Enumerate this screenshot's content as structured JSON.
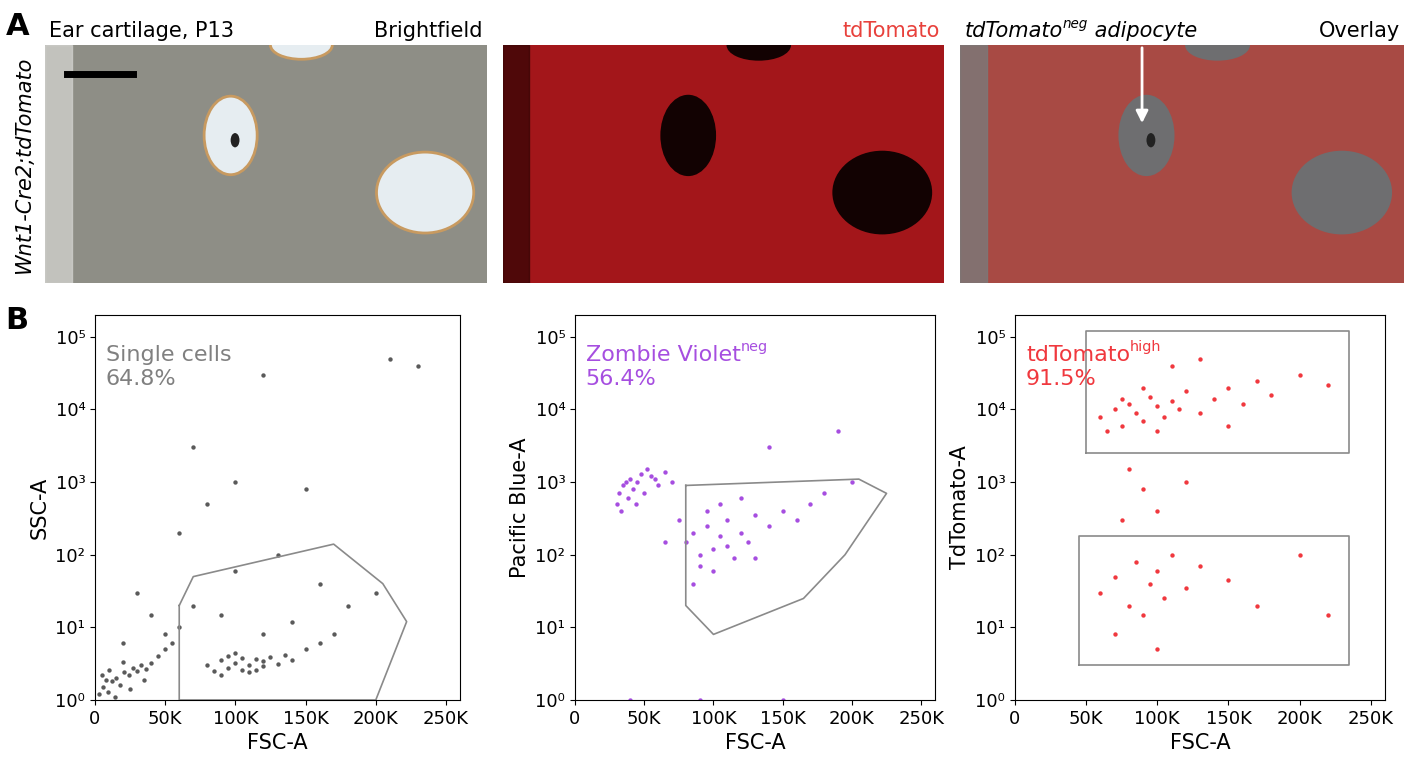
{
  "panel_labels": [
    "A",
    "B"
  ],
  "image_panel": {
    "row_label": "Wnt1-Cre2;tdTomato",
    "tiles": [
      {
        "left": {
          "text": "Ear cartilage, P13"
        },
        "right": {
          "text": "Brightfield"
        }
      },
      {
        "right": {
          "text": "tdTomato",
          "color": "#e8413c"
        }
      },
      {
        "left": {
          "text": "tdTomato",
          "sup": "neg",
          "after": " adipocyte"
        },
        "right": {
          "text": "Overlay"
        }
      }
    ]
  },
  "chart_data": [
    {
      "type": "scatter",
      "xlabel": "FSC-A",
      "ylabel": "SSC-A",
      "color": "#5a5a5a",
      "log": "y",
      "xlim": [
        0,
        260000
      ],
      "ylim": [
        1,
        200000
      ],
      "xticks": [
        {
          "value": 0,
          "label": "0"
        },
        {
          "value": 50000,
          "label": "50K"
        },
        {
          "value": 100000,
          "label": "100K"
        },
        {
          "value": 150000,
          "label": "150K"
        },
        {
          "value": 200000,
          "label": "200K"
        },
        {
          "value": 250000,
          "label": "250K"
        }
      ],
      "yticks": [
        {
          "value": 1,
          "label": "10⁰"
        },
        {
          "value": 10,
          "label": "10¹"
        },
        {
          "value": 100,
          "label": "10²"
        },
        {
          "value": 1000,
          "label": "10³"
        },
        {
          "value": 10000,
          "label": "10⁴"
        },
        {
          "value": 100000,
          "label": "10⁵"
        }
      ],
      "x": [
        3000,
        6000,
        9000,
        12000,
        15000,
        18000,
        21000,
        24000,
        27000,
        30000,
        33000,
        36000,
        40000,
        5000,
        10000,
        20000,
        25000,
        14000,
        8000,
        35000,
        45000,
        50000,
        55000,
        80000,
        85000,
        90000,
        95000,
        100000,
        105000,
        110000,
        115000,
        120000,
        125000,
        130000,
        135000,
        140000,
        100000,
        90000,
        110000,
        120000,
        95000,
        105000,
        115000,
        150000,
        160000,
        170000,
        60000,
        70000,
        90000,
        120000,
        140000,
        180000,
        200000,
        160000,
        40000,
        100000,
        130000,
        60000,
        80000,
        100000,
        150000,
        70000,
        120000,
        230000,
        210000,
        30000,
        50000,
        20000
      ],
      "values": [
        1.2,
        1.5,
        1.3,
        1.8,
        2.0,
        1.6,
        2.4,
        2.2,
        2.8,
        2.5,
        3.0,
        2.7,
        3.2,
        2.2,
        2.6,
        3.3,
        1.4,
        1.1,
        1.9,
        1.9,
        4,
        5,
        6,
        3,
        2.5,
        3.5,
        2.8,
        3.2,
        3.8,
        3.0,
        2.6,
        3.4,
        3.9,
        3.1,
        4.2,
        3.6,
        4.5,
        2.2,
        2.4,
        2.9,
        4.0,
        2.6,
        3.7,
        5,
        6,
        8,
        10,
        20,
        15,
        8,
        12,
        20,
        30,
        40,
        15,
        60,
        100,
        200,
        500,
        1000,
        800,
        3000,
        30000,
        40000,
        50000,
        30,
        8,
        6
      ],
      "gates": [
        {
          "x": [
            60000,
            70000,
            170000,
            205000,
            222000,
            200000,
            60000
          ],
          "y": [
            20,
            50,
            140,
            40,
            12,
            1,
            1
          ]
        }
      ],
      "annotation": {
        "text": "Single cells",
        "percent": "64.8%",
        "color": "#808080"
      }
    },
    {
      "type": "scatter",
      "xlabel": "FSC-A",
      "ylabel": "Pacific Blue-A",
      "color": "#a64ee0",
      "log": "y",
      "xlim": [
        0,
        260000
      ],
      "ylim": [
        1,
        200000
      ],
      "xticks": [
        {
          "value": 0,
          "label": "0"
        },
        {
          "value": 50000,
          "label": "50K"
        },
        {
          "value": 100000,
          "label": "100K"
        },
        {
          "value": 150000,
          "label": "150K"
        },
        {
          "value": 200000,
          "label": "200K"
        },
        {
          "value": 250000,
          "label": "250K"
        }
      ],
      "yticks": [
        {
          "value": 1,
          "label": "10⁰"
        },
        {
          "value": 10,
          "label": "10¹"
        },
        {
          "value": 100,
          "label": "10²"
        },
        {
          "value": 1000,
          "label": "10³"
        },
        {
          "value": 10000,
          "label": "10⁴"
        },
        {
          "value": 100000,
          "label": "10⁵"
        }
      ],
      "x": [
        30000,
        32000,
        35000,
        38000,
        40000,
        42000,
        45000,
        48000,
        50000,
        55000,
        60000,
        65000,
        70000,
        33000,
        37000,
        44000,
        52000,
        58000,
        80000,
        85000,
        90000,
        95000,
        100000,
        105000,
        110000,
        115000,
        120000,
        125000,
        130000,
        140000,
        150000,
        160000,
        170000,
        90000,
        100000,
        110000,
        95000,
        105000,
        120000,
        180000,
        200000,
        140000,
        190000,
        65000,
        75000,
        130000,
        85000,
        40000,
        90000,
        150000
      ],
      "values": [
        500,
        700,
        900,
        600,
        1100,
        800,
        1000,
        1300,
        700,
        1200,
        900,
        1400,
        1000,
        400,
        1000,
        500,
        1500,
        1100,
        150,
        200,
        100,
        250,
        120,
        180,
        300,
        90,
        200,
        150,
        350,
        250,
        400,
        300,
        500,
        70,
        60,
        130,
        400,
        500,
        600,
        700,
        1000,
        3000,
        5000,
        150,
        300,
        90,
        40,
        1,
        1,
        1
      ],
      "gates": [
        {
          "x": [
            80000,
            205000,
            225000,
            195000,
            165000,
            100000,
            80000
          ],
          "y": [
            900,
            1100,
            700,
            100,
            25,
            8,
            20
          ]
        }
      ],
      "annotation": {
        "text": "Zombie Violet",
        "sup": "neg",
        "percent": "56.4%",
        "color": "#a64ee0"
      }
    },
    {
      "type": "scatter",
      "xlabel": "FSC-A",
      "ylabel": "TdTomato-A",
      "color": "#f0383e",
      "log": "y",
      "xlim": [
        0,
        260000
      ],
      "ylim": [
        1,
        200000
      ],
      "xticks": [
        {
          "value": 0,
          "label": "0"
        },
        {
          "value": 50000,
          "label": "50K"
        },
        {
          "value": 100000,
          "label": "100K"
        },
        {
          "value": 150000,
          "label": "150K"
        },
        {
          "value": 200000,
          "label": "200K"
        },
        {
          "value": 250000,
          "label": "250K"
        }
      ],
      "yticks": [
        {
          "value": 1,
          "label": "10⁰"
        },
        {
          "value": 10,
          "label": "10¹"
        },
        {
          "value": 100,
          "label": "10²"
        },
        {
          "value": 1000,
          "label": "10³"
        },
        {
          "value": 10000,
          "label": "10⁴"
        },
        {
          "value": 100000,
          "label": "10⁵"
        }
      ],
      "x": [
        60000,
        70000,
        75000,
        80000,
        85000,
        90000,
        95000,
        100000,
        105000,
        110000,
        115000,
        120000,
        130000,
        140000,
        150000,
        160000,
        170000,
        180000,
        200000,
        220000,
        65000,
        90000,
        110000,
        130000,
        150000,
        75000,
        100000,
        80000,
        90000,
        100000,
        120000,
        75000,
        60000,
        70000,
        80000,
        85000,
        90000,
        95000,
        100000,
        105000,
        110000,
        120000,
        130000,
        150000,
        170000,
        200000,
        220000,
        70000,
        100000
      ],
      "values": [
        8000,
        10000,
        6000,
        12000,
        9000,
        7000,
        15000,
        11000,
        8000,
        13000,
        10000,
        18000,
        9000,
        14000,
        20000,
        12000,
        25000,
        16000,
        30000,
        22000,
        5000,
        20000,
        40000,
        50000,
        6000,
        14000,
        5000,
        1500,
        800,
        400,
        1000,
        300,
        30,
        50,
        20,
        80,
        15,
        40,
        60,
        25,
        100,
        35,
        70,
        45,
        20,
        100,
        15,
        8,
        5
      ],
      "gates": [
        {
          "x": [
            50000,
            235000,
            235000,
            50000
          ],
          "y": [
            2500,
            2500,
            120000,
            120000
          ]
        },
        {
          "x": [
            45000,
            235000,
            235000,
            45000
          ],
          "y": [
            3,
            3,
            180,
            180
          ]
        }
      ],
      "annotation": {
        "text": "tdTomato",
        "sup": "high",
        "percent": "91.5%",
        "color": "#f0383e"
      }
    }
  ]
}
